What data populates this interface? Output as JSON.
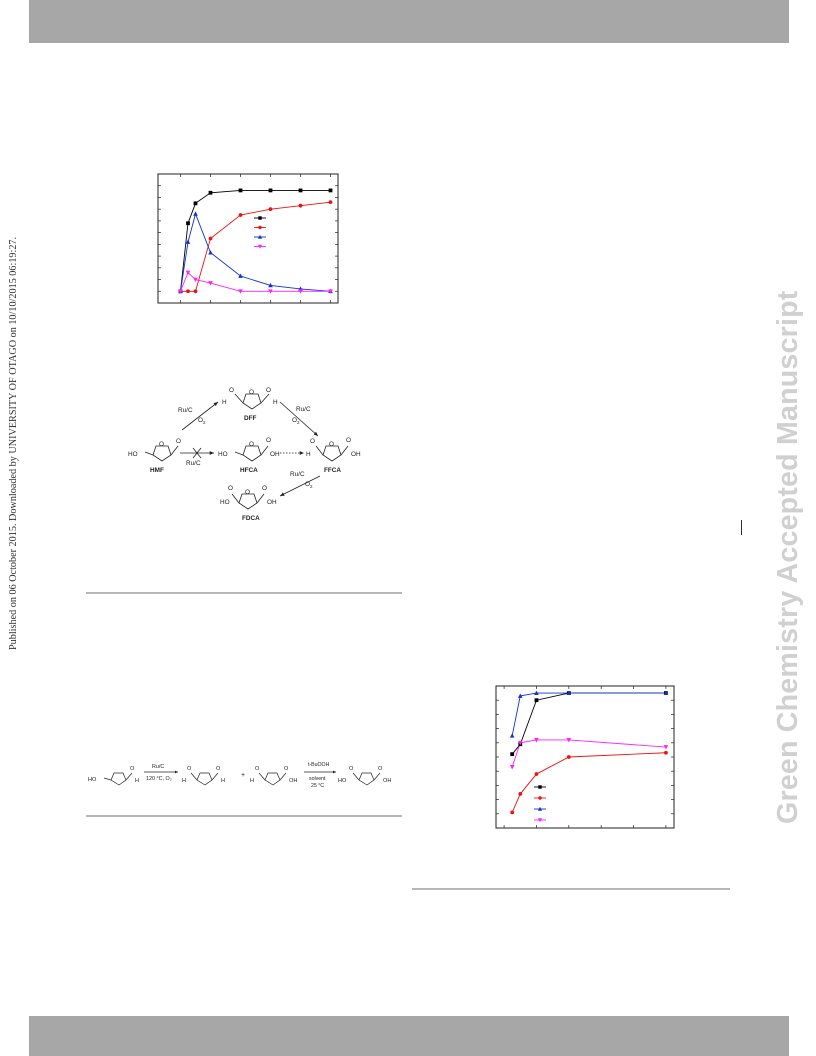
{
  "page": {
    "side_text": "Published on 06 October 2015. Downloaded by UNIVERSITY OF OTAGO on 10/10/2015 06:19:27.",
    "watermark": "Green Chemistry Accepted Manuscript"
  },
  "scheme1": {
    "hmf": "HMF",
    "dff": "DFF",
    "hfca": "HFCA",
    "ffca": "FFCA",
    "fdca": "FDCA",
    "ruc": "Ru/C",
    "o2": "O",
    "o2_sub": "2",
    "ho": "HO",
    "oh": "OH",
    "o": "O",
    "h": "H"
  },
  "scheme2": {
    "ho": "HO",
    "o": "O",
    "h": "H",
    "oh": "OH",
    "plus": "+",
    "cond1a": "Ru/C",
    "cond1b": "120 °C, O₂",
    "cond2a": "t-BuOOH",
    "cond2b": "solvent",
    "cond2c": "25 °C"
  },
  "chart_data": [
    {
      "type": "line",
      "title": "",
      "xlabel": "",
      "ylabel": "",
      "x": [
        0,
        1,
        2,
        4,
        8,
        12,
        16,
        20
      ],
      "series": [
        {
          "color": "#000000",
          "marker": "square",
          "values": [
            0,
            58,
            75,
            84,
            86,
            86,
            86,
            86
          ]
        },
        {
          "color": "#ee1111",
          "marker": "circle",
          "values": [
            0,
            0,
            0,
            45,
            65,
            70,
            73,
            76
          ]
        },
        {
          "color": "#1133cc",
          "marker": "triangle-up",
          "values": [
            0,
            42,
            66,
            33,
            13,
            5,
            2,
            0
          ]
        },
        {
          "color": "#ff22ff",
          "marker": "triangle-down",
          "values": [
            0,
            16,
            10,
            7,
            0,
            0,
            0,
            0
          ]
        }
      ],
      "grid": false,
      "legend": "right-middle"
    },
    {
      "type": "line",
      "title": "",
      "xlabel": "",
      "ylabel": "",
      "x": [
        1,
        2,
        4,
        8,
        20
      ],
      "series": [
        {
          "color": "#000000",
          "marker": "square",
          "values": [
            52,
            59,
            90,
            95,
            95
          ]
        },
        {
          "color": "#ee1111",
          "marker": "circle",
          "values": [
            11,
            24,
            38,
            50,
            53
          ]
        },
        {
          "color": "#1133cc",
          "marker": "triangle-up",
          "values": [
            65,
            93,
            95,
            95,
            95
          ]
        },
        {
          "color": "#ff22ff",
          "marker": "triangle-down",
          "values": [
            43,
            60,
            62,
            62,
            57
          ]
        }
      ],
      "grid": false,
      "legend": "bottom-left"
    }
  ]
}
